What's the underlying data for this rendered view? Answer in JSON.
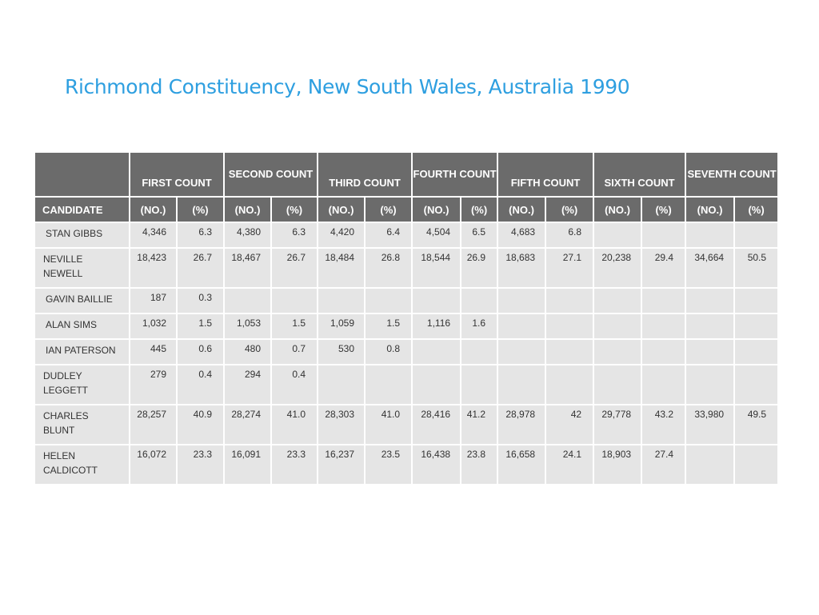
{
  "title": "Richmond Constituency, New South Wales, Australia 1990",
  "table": {
    "count_headers": [
      "FIRST COUNT",
      "SECOND COUNT",
      "THIRD COUNT",
      "FOURTH COUNT",
      "FIFTH COUNT",
      "SIXTH COUNT",
      "SEVENTH COUNT"
    ],
    "candidate_header": "CANDIDATE",
    "no_label": "(NO.)",
    "pct_label": "(%)",
    "rows": [
      {
        "name": "STAN GIBBS",
        "cells": [
          "4,346",
          "6.3",
          "4,380",
          "6.3",
          "4,420",
          "6.4",
          "4,504",
          "6.5",
          "4,683",
          "6.8",
          "",
          "",
          "",
          ""
        ]
      },
      {
        "name": "NEVILLE NEWELL",
        "cells": [
          "18,423",
          "26.7",
          "18,467",
          "26.7",
          "18,484",
          "26.8",
          "18,544",
          "26.9",
          "18,683",
          "27.1",
          "20,238",
          "29.4",
          "34,664",
          "50.5"
        ]
      },
      {
        "name": "GAVIN BAILLIE",
        "cells": [
          "187",
          "0.3",
          "",
          "",
          "",
          "",
          "",
          "",
          "",
          "",
          "",
          "",
          "",
          ""
        ]
      },
      {
        "name": "ALAN SIMS",
        "cells": [
          "1,032",
          "1.5",
          "1,053",
          "1.5",
          "1,059",
          "1.5",
          "1,116",
          "1.6",
          "",
          "",
          "",
          "",
          "",
          ""
        ]
      },
      {
        "name": "IAN PATERSON",
        "cells": [
          "445",
          "0.6",
          "480",
          "0.7",
          "530",
          "0.8",
          "",
          "",
          "",
          "",
          "",
          "",
          "",
          ""
        ]
      },
      {
        "name": "DUDLEY LEGGETT",
        "cells": [
          "279",
          "0.4",
          "294",
          "0.4",
          "",
          "",
          "",
          "",
          "",
          "",
          "",
          "",
          "",
          ""
        ]
      },
      {
        "name": "CHARLES BLUNT",
        "cells": [
          "28,257",
          "40.9",
          "28,274",
          "41.0",
          "28,303",
          "41.0",
          "28,416",
          "41.2",
          "28,978",
          "42",
          "29,778",
          "43.2",
          "33,980",
          "49.5"
        ]
      },
      {
        "name": "HELEN CALDICOTT",
        "cells": [
          "16,072",
          "23.3",
          "16,091",
          "23.3",
          "16,237",
          "23.5",
          "16,438",
          "23.8",
          "16,658",
          "24.1",
          "18,903",
          "27.4",
          "",
          ""
        ]
      }
    ]
  }
}
